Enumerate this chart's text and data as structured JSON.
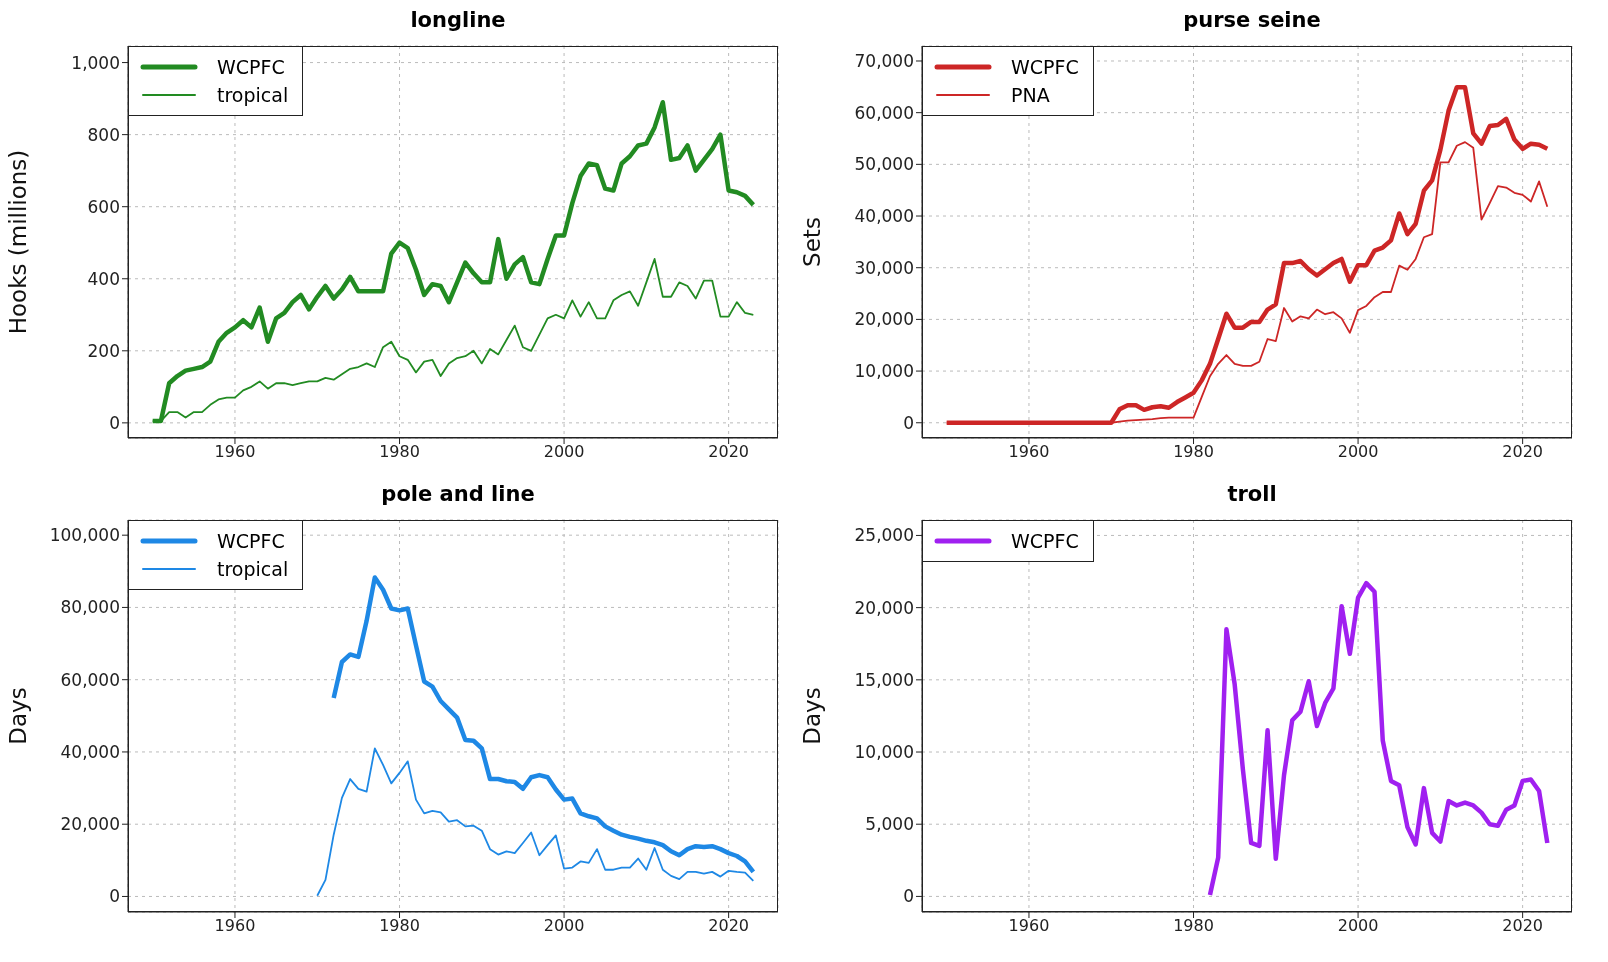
{
  "chart_data": [
    {
      "type": "line",
      "title": "longline",
      "ylabel": "Hooks (millions)",
      "legend": "top left",
      "grid": true,
      "x": [
        1950,
        1951,
        1952,
        1953,
        1954,
        1955,
        1956,
        1957,
        1958,
        1959,
        1960,
        1961,
        1962,
        1963,
        1964,
        1965,
        1966,
        1967,
        1968,
        1969,
        1970,
        1971,
        1972,
        1973,
        1974,
        1975,
        1976,
        1977,
        1978,
        1979,
        1980,
        1981,
        1982,
        1983,
        1984,
        1985,
        1986,
        1987,
        1988,
        1989,
        1990,
        1991,
        1992,
        1993,
        1994,
        1995,
        1996,
        1997,
        1998,
        1999,
        2000,
        2001,
        2002,
        2003,
        2004,
        2005,
        2006,
        2007,
        2008,
        2009,
        2010,
        2011,
        2012,
        2013,
        2014,
        2015,
        2016,
        2017,
        2018,
        2019,
        2020,
        2021,
        2022,
        2023
      ],
      "xlim": [
        1947,
        2026
      ],
      "xticks": [
        1960,
        1980,
        2000,
        2020
      ],
      "ylim": [
        -42,
        1046
      ],
      "yticks": [
        0,
        200,
        400,
        600,
        800,
        {
          "value": 1000,
          "label": "1,000"
        }
      ],
      "series": [
        {
          "name": "WCPFC",
          "color": "#228b22",
          "values": [
            5,
            5,
            110,
            130,
            145,
            150,
            155,
            170,
            225,
            250,
            265,
            285,
            265,
            320,
            225,
            290,
            305,
            335,
            355,
            315,
            350,
            380,
            345,
            370,
            405,
            365,
            365,
            365,
            365,
            470,
            500,
            485,
            425,
            355,
            385,
            380,
            335,
            390,
            445,
            415,
            390,
            390,
            510,
            400,
            440,
            460,
            390,
            385,
            455,
            520,
            520,
            610,
            685,
            720,
            715,
            650,
            645,
            720,
            740,
            770,
            775,
            820,
            890,
            730,
            735,
            770,
            700,
            730,
            760,
            800,
            645,
            640,
            630,
            605
          ]
        },
        {
          "name": "tropical",
          "color": "#228b22",
          "values": [
            5,
            5,
            30,
            30,
            15,
            30,
            30,
            50,
            65,
            70,
            70,
            90,
            100,
            115,
            95,
            110,
            110,
            105,
            110,
            115,
            115,
            125,
            120,
            135,
            150,
            155,
            165,
            155,
            210,
            225,
            185,
            175,
            140,
            170,
            175,
            130,
            165,
            180,
            185,
            200,
            165,
            205,
            190,
            230,
            270,
            210,
            200,
            245,
            290,
            300,
            290,
            340,
            295,
            335,
            290,
            290,
            340,
            355,
            365,
            325,
            390,
            455,
            350,
            350,
            390,
            380,
            345,
            395,
            395,
            295,
            295,
            335,
            305,
            300
          ]
        }
      ]
    },
    {
      "type": "line",
      "title": "purse seine",
      "ylabel": "Sets",
      "legend": "top left",
      "grid": true,
      "x": [
        1950,
        1951,
        1952,
        1953,
        1954,
        1955,
        1956,
        1957,
        1958,
        1959,
        1960,
        1961,
        1962,
        1963,
        1964,
        1965,
        1966,
        1967,
        1968,
        1969,
        1970,
        1971,
        1972,
        1973,
        1974,
        1975,
        1976,
        1977,
        1978,
        1979,
        1980,
        1981,
        1982,
        1983,
        1984,
        1985,
        1986,
        1987,
        1988,
        1989,
        1990,
        1991,
        1992,
        1993,
        1994,
        1995,
        1996,
        1997,
        1998,
        1999,
        2000,
        2001,
        2002,
        2003,
        2004,
        2005,
        2006,
        2007,
        2008,
        2009,
        2010,
        2011,
        2012,
        2013,
        2014,
        2015,
        2016,
        2017,
        2018,
        2019,
        2020,
        2021,
        2022,
        2023
      ],
      "xlim": [
        1947,
        2026
      ],
      "xticks": [
        1960,
        1980,
        2000,
        2020
      ],
      "ylim": [
        -2950,
        72900
      ],
      "yticks": [
        0,
        {
          "value": 10000,
          "label": "10,000"
        },
        {
          "value": 20000,
          "label": "20,000"
        },
        {
          "value": 30000,
          "label": "30,000"
        },
        {
          "value": 40000,
          "label": "40,000"
        },
        {
          "value": 50000,
          "label": "50,000"
        },
        {
          "value": 60000,
          "label": "60,000"
        },
        {
          "value": 70000,
          "label": "70,000"
        }
      ],
      "series": [
        {
          "name": "WCPFC",
          "color": "#cd2626",
          "values": [
            0,
            0,
            0,
            0,
            0,
            0,
            0,
            0,
            0,
            0,
            0,
            0,
            0,
            0,
            0,
            0,
            0,
            0,
            0,
            0,
            0,
            2600,
            3400,
            3400,
            2500,
            3000,
            3200,
            2900,
            4000,
            4900,
            5800,
            8200,
            11400,
            16200,
            21100,
            18400,
            18400,
            19500,
            19500,
            21900,
            22900,
            30900,
            30900,
            31300,
            29700,
            28500,
            29700,
            30900,
            31700,
            27300,
            30500,
            30500,
            33300,
            33900,
            35300,
            40500,
            36500,
            38500,
            44900,
            46900,
            52800,
            60400,
            64900,
            64900,
            56000,
            54000,
            57400,
            57600,
            58800,
            54800,
            53000,
            54000,
            53800,
            53000
          ]
        },
        {
          "name": "PNA",
          "color": "#cd2626",
          "values": [
            0,
            0,
            0,
            0,
            0,
            0,
            0,
            0,
            0,
            0,
            0,
            0,
            0,
            0,
            0,
            0,
            0,
            0,
            0,
            0,
            0,
            200,
            400,
            500,
            600,
            700,
            900,
            1000,
            1000,
            1000,
            1000,
            5000,
            9000,
            11400,
            13100,
            11400,
            11000,
            11000,
            11800,
            16200,
            15800,
            22200,
            19600,
            20600,
            20200,
            21900,
            21000,
            21400,
            20200,
            17400,
            21800,
            22600,
            24300,
            25300,
            25300,
            30400,
            29600,
            31700,
            35900,
            36500,
            50400,
            50400,
            53600,
            54300,
            53200,
            39300,
            42500,
            45800,
            45500,
            44500,
            44100,
            42800,
            46700,
            41800
          ]
        }
      ]
    },
    {
      "type": "line",
      "title": "pole and line",
      "ylabel": "Days",
      "legend": "top left",
      "grid": true,
      "x": [
        1970,
        1971,
        1972,
        1973,
        1974,
        1975,
        1976,
        1977,
        1978,
        1979,
        1980,
        1981,
        1982,
        1983,
        1984,
        1985,
        1986,
        1987,
        1988,
        1989,
        1990,
        1991,
        1992,
        1993,
        1994,
        1995,
        1996,
        1997,
        1998,
        1999,
        2000,
        2001,
        2002,
        2003,
        2004,
        2005,
        2006,
        2007,
        2008,
        2009,
        2010,
        2011,
        2012,
        2013,
        2014,
        2015,
        2016,
        2017,
        2018,
        2019,
        2020,
        2021,
        2022,
        2023
      ],
      "xlim": [
        1947,
        2026
      ],
      "xticks": [
        1960,
        1980,
        2000,
        2020
      ],
      "ylim": [
        -4300,
        104200
      ],
      "yticks": [
        0,
        {
          "value": 20000,
          "label": "20,000"
        },
        {
          "value": 40000,
          "label": "40,000"
        },
        {
          "value": 60000,
          "label": "60,000"
        },
        {
          "value": 80000,
          "label": "80,000"
        },
        {
          "value": 100000,
          "label": "100,000"
        }
      ],
      "series": [
        {
          "name": "WCPFC",
          "color": "#1e88e5",
          "values": [
            null,
            null,
            54900,
            64900,
            67000,
            66300,
            76300,
            88300,
            84900,
            79700,
            79200,
            79700,
            69500,
            59500,
            58100,
            54100,
            51800,
            49500,
            43300,
            43100,
            41000,
            32500,
            32500,
            31900,
            31700,
            29800,
            33000,
            33600,
            33000,
            29600,
            26800,
            27100,
            23000,
            22200,
            21600,
            19400,
            18200,
            17100,
            16500,
            16000,
            15400,
            15000,
            14200,
            12500,
            11400,
            13100,
            13900,
            13700,
            13900,
            13100,
            12000,
            11200,
            9700,
            6800
          ]
        },
        {
          "name": "tropical",
          "color": "#1e88e5",
          "values": [
            200,
            4600,
            17100,
            27300,
            32500,
            29800,
            29000,
            41000,
            36400,
            31300,
            34200,
            37400,
            26800,
            23000,
            23700,
            23300,
            20700,
            21100,
            19400,
            19600,
            18200,
            13100,
            11600,
            12500,
            12000,
            14800,
            17700,
            11400,
            14200,
            16900,
            7700,
            8000,
            9700,
            9300,
            13100,
            7400,
            7400,
            8000,
            8000,
            10500,
            7400,
            13400,
            7400,
            5700,
            4800,
            6800,
            6800,
            6300,
            6800,
            5500,
            7100,
            6800,
            6600,
            4300
          ]
        }
      ]
    },
    {
      "type": "line",
      "title": "troll",
      "ylabel": "Days",
      "legend": "top left",
      "grid": true,
      "x": [
        1982,
        1983,
        1984,
        1985,
        1986,
        1987,
        1988,
        1989,
        1990,
        1991,
        1992,
        1993,
        1994,
        1995,
        1996,
        1997,
        1998,
        1999,
        2000,
        2001,
        2002,
        2003,
        2004,
        2005,
        2006,
        2007,
        2008,
        2009,
        2010,
        2011,
        2012,
        2013,
        2014,
        2015,
        2016,
        2017,
        2018,
        2019,
        2020,
        2021,
        2022,
        2023
      ],
      "xlim": [
        1947,
        2026
      ],
      "xticks": [
        1960,
        1980,
        2000,
        2020
      ],
      "ylim": [
        -1080,
        26070
      ],
      "yticks": [
        0,
        {
          "value": 5000,
          "label": "5,000"
        },
        {
          "value": 10000,
          "label": "10,000"
        },
        {
          "value": 15000,
          "label": "15,000"
        },
        {
          "value": 20000,
          "label": "20,000"
        },
        {
          "value": 25000,
          "label": "25,000"
        }
      ],
      "series": [
        {
          "name": "WCPFC",
          "color": "#a020f0",
          "values": [
            100,
            2700,
            18500,
            14700,
            8800,
            3700,
            3500,
            11500,
            2600,
            8400,
            12200,
            12800,
            14900,
            11800,
            13400,
            14400,
            20100,
            16800,
            20700,
            21700,
            21100,
            10800,
            8000,
            7700,
            4800,
            3600,
            7500,
            4400,
            3800,
            6600,
            6300,
            6500,
            6300,
            5800,
            5000,
            4900,
            6000,
            6300,
            8000,
            8100,
            7300,
            3700
          ]
        }
      ]
    }
  ]
}
